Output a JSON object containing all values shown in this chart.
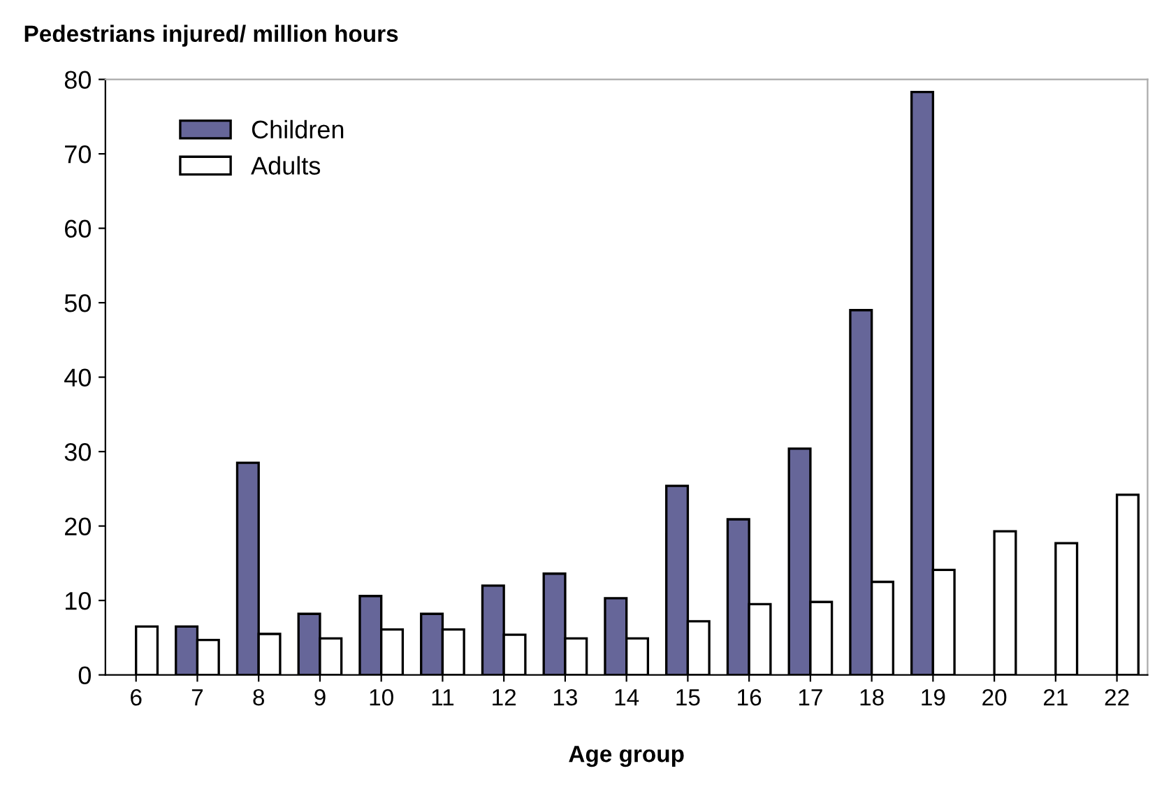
{
  "chart_data": {
    "type": "bar",
    "title": "Pedestrians injured/ million hours",
    "xlabel": "Age group",
    "categories": [
      "6",
      "7",
      "8",
      "9",
      "10",
      "11",
      "12",
      "13",
      "14",
      "15",
      "16",
      "17",
      "18",
      "19",
      "20",
      "21",
      "22"
    ],
    "series": [
      {
        "name": "Children",
        "color": "#666699",
        "values": [
          null,
          6.5,
          28.5,
          8.2,
          10.6,
          8.2,
          12.0,
          13.6,
          10.3,
          25.4,
          20.9,
          30.4,
          49.0,
          78.3,
          null,
          null,
          null
        ]
      },
      {
        "name": "Adults",
        "color": "#ffffff",
        "values": [
          6.5,
          4.7,
          5.5,
          4.9,
          6.1,
          6.1,
          5.4,
          4.9,
          4.9,
          7.2,
          9.5,
          9.8,
          12.5,
          14.1,
          19.3,
          17.7,
          24.2
        ]
      }
    ],
    "ylim": [
      0,
      80
    ],
    "yticks": [
      0,
      10,
      20,
      30,
      40,
      50,
      60,
      70,
      80
    ],
    "grid": false,
    "legend": "top left"
  }
}
